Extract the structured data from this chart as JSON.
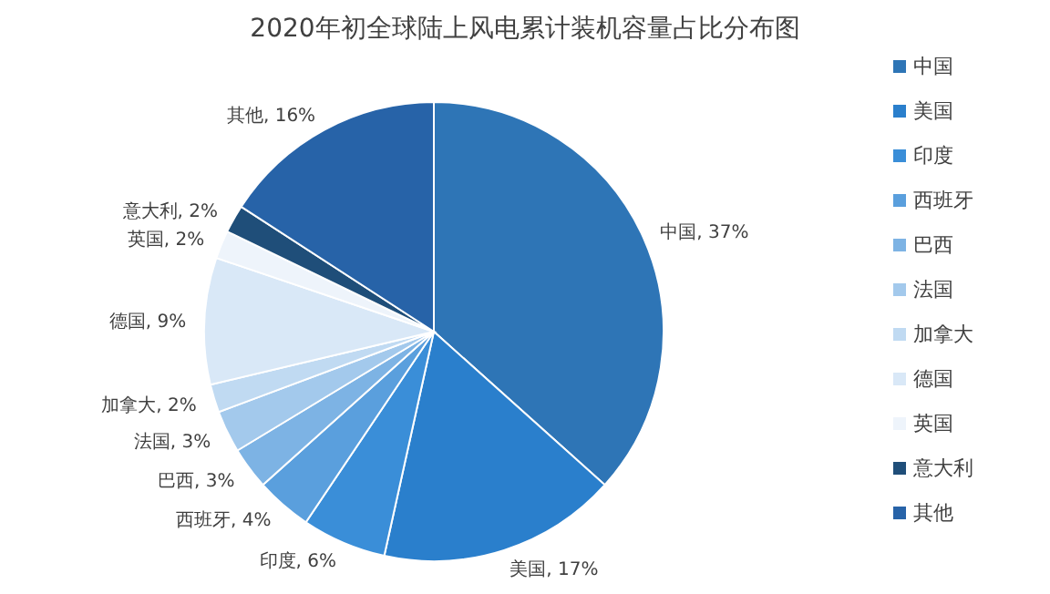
{
  "chart_data": {
    "type": "pie",
    "title": "2020年初全球陆上风电累计装机容量占比分布图",
    "categories": [
      "中国",
      "美国",
      "印度",
      "西班牙",
      "巴西",
      "法国",
      "加拿大",
      "德国",
      "英国",
      "意大利",
      "其他"
    ],
    "values": [
      37,
      17,
      6,
      4,
      3,
      3,
      2,
      9,
      2,
      2,
      16
    ],
    "colors": [
      "#2e75b6",
      "#2a7fcc",
      "#3a8ed8",
      "#5a9fdd",
      "#7db3e4",
      "#a3c9ec",
      "#c0daf2",
      "#d9e8f7",
      "#eef4fb",
      "#1f4e79",
      "#2763a8"
    ],
    "value_labels": [
      "中国, 37%",
      "美国, 17%",
      "印度, 6%",
      "西班牙, 4%",
      "巴西, 3%",
      "法国, 3%",
      "加拿大, 2%",
      "德国, 9%",
      "英国, 2%",
      "意大利, 2%",
      "其他, 16%"
    ],
    "legend": "right"
  }
}
